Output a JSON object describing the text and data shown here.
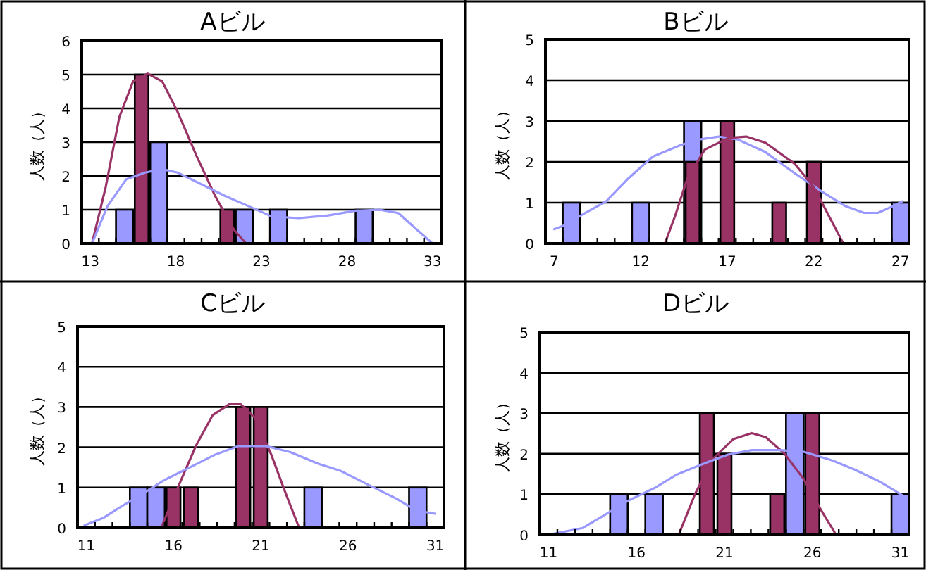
{
  "chart_data": [
    {
      "type": "bar",
      "title": "Aビル",
      "ylabel": "人数（人）",
      "x": [
        13,
        14,
        15,
        16,
        17,
        18,
        19,
        20,
        21,
        22,
        23,
        24,
        25,
        26,
        27,
        28,
        29,
        30,
        31,
        32,
        33
      ],
      "xlim": [
        12.5,
        33.5
      ],
      "xticks": [
        13,
        18,
        23,
        28,
        33
      ],
      "ylim": [
        0,
        6
      ],
      "yticks": [
        0,
        1,
        2,
        3,
        4,
        5,
        6
      ],
      "grid": "y",
      "series": [
        {
          "color": "#9999ff",
          "values": [
            0,
            0,
            1,
            0,
            3,
            0,
            0,
            0,
            0,
            1,
            0,
            1,
            0,
            0,
            0,
            0,
            1,
            0,
            0,
            0,
            0
          ]
        },
        {
          "color": "#993366",
          "values": [
            0,
            0,
            0,
            5,
            0,
            0,
            0,
            0,
            1,
            0,
            0,
            0,
            0,
            0,
            0,
            0,
            0,
            0,
            0,
            0,
            0
          ]
        },
        {
          "type": "line",
          "color": "#993366",
          "x": [
            13.1,
            13.9,
            14.7,
            15.5,
            16.35,
            17.2,
            18.1,
            19.2,
            20.3,
            21.4,
            22.1
          ],
          "values": [
            0,
            1.67,
            3.75,
            4.8,
            5.03,
            4.8,
            3.9,
            2.6,
            1.4,
            0.4,
            0
          ]
        },
        {
          "type": "line",
          "color": "#9999ff",
          "x": [
            13.1,
            14.0,
            15.1,
            16.2,
            17.2,
            18.1,
            19.5,
            20.9,
            22.5,
            23.6,
            25.2,
            26.9,
            28.5,
            29.9,
            31.0,
            32.1,
            33.0
          ],
          "values": [
            0,
            1.1,
            1.9,
            2.1,
            2.2,
            2.1,
            1.75,
            1.4,
            1.05,
            0.8,
            0.75,
            0.83,
            0.97,
            1.0,
            0.9,
            0.4,
            0
          ]
        }
      ]
    },
    {
      "type": "bar",
      "title": "Bビル",
      "ylabel": "人数（人）",
      "x": [
        7,
        8,
        9,
        10,
        11,
        12,
        13,
        14,
        15,
        16,
        17,
        18,
        19,
        20,
        21,
        22,
        23,
        24,
        25,
        26,
        27
      ],
      "xlim": [
        6.5,
        27.5
      ],
      "xticks": [
        7,
        12,
        17,
        22,
        27
      ],
      "ylim": [
        0,
        5
      ],
      "yticks": [
        0,
        1,
        2,
        3,
        4,
        5
      ],
      "grid": "y",
      "series": [
        {
          "color": "#9999ff",
          "values": [
            0,
            1,
            0,
            0,
            0,
            1,
            0,
            0,
            3,
            0,
            0,
            0,
            0,
            0,
            0,
            0,
            0,
            0,
            0,
            0,
            1
          ]
        },
        {
          "color": "#993366",
          "values": [
            0,
            0,
            0,
            0,
            0,
            0,
            0,
            0,
            2,
            0,
            3,
            0,
            0,
            1,
            0,
            2,
            0,
            0,
            0,
            0,
            0
          ]
        },
        {
          "type": "line",
          "color": "#9999ff",
          "x": [
            7.0,
            7.7,
            8.6,
            10.0,
            11.3,
            12.7,
            14.3,
            15.4,
            16.5,
            17.6,
            19.2,
            20.9,
            22.5,
            23.8,
            24.9,
            25.7,
            26.6,
            27.1
          ],
          "values": [
            0.35,
            0.46,
            0.7,
            1.03,
            1.6,
            2.13,
            2.41,
            2.55,
            2.62,
            2.55,
            2.24,
            1.72,
            1.26,
            0.92,
            0.75,
            0.75,
            0.92,
            1.03
          ]
        },
        {
          "type": "line",
          "color": "#993366",
          "x": [
            13.4,
            14.0,
            14.7,
            15.7,
            17.1,
            18.1,
            19.2,
            20.9,
            22.0,
            23.0,
            23.7
          ],
          "values": [
            0,
            0.69,
            1.6,
            2.3,
            2.59,
            2.62,
            2.47,
            1.95,
            1.38,
            0.57,
            0
          ]
        }
      ]
    },
    {
      "type": "bar",
      "title": "Cビル",
      "ylabel": "人数（人）",
      "x": [
        11,
        12,
        13,
        14,
        15,
        16,
        17,
        18,
        19,
        20,
        21,
        22,
        23,
        24,
        25,
        26,
        27,
        28,
        29,
        30,
        31
      ],
      "xlim": [
        10.5,
        31.5
      ],
      "xticks": [
        11,
        16,
        21,
        26,
        31
      ],
      "ylim": [
        0,
        5
      ],
      "yticks": [
        0,
        1,
        2,
        3,
        4,
        5
      ],
      "grid": "y",
      "series": [
        {
          "color": "#9999ff",
          "values": [
            0,
            0,
            0,
            1,
            1,
            0,
            0,
            0,
            0,
            0,
            0,
            0,
            0,
            1,
            0,
            0,
            0,
            0,
            0,
            1,
            0
          ]
        },
        {
          "color": "#993366",
          "values": [
            0,
            0,
            0,
            0,
            0,
            1,
            1,
            0,
            0,
            3,
            3,
            0,
            0,
            0,
            0,
            0,
            0,
            0,
            0,
            0,
            0
          ]
        },
        {
          "type": "line",
          "color": "#993366",
          "x": [
            15.3,
            16.25,
            17.3,
            18.25,
            19.2,
            19.85,
            20.65,
            21.6,
            22.4,
            23.2
          ],
          "values": [
            0,
            1.0,
            2.05,
            2.8,
            3.07,
            3.07,
            2.74,
            1.82,
            0.89,
            0
          ]
        },
        {
          "type": "line",
          "color": "#9999ff",
          "x": [
            10.9,
            12.0,
            13.05,
            14.4,
            15.45,
            16.8,
            18.4,
            19.7,
            21.3,
            22.7,
            24.3,
            25.6,
            27.2,
            28.8,
            29.9,
            31.0
          ],
          "values": [
            0.06,
            0.25,
            0.54,
            0.89,
            1.18,
            1.47,
            1.82,
            2.03,
            2.03,
            1.88,
            1.59,
            1.41,
            1.06,
            0.72,
            0.43,
            0.35
          ]
        }
      ]
    },
    {
      "type": "bar",
      "title": "Dビル",
      "ylabel": "人数（人）",
      "x": [
        11,
        12,
        13,
        14,
        15,
        16,
        17,
        18,
        19,
        20,
        21,
        22,
        23,
        24,
        25,
        26,
        27,
        28,
        29,
        30,
        31
      ],
      "xlim": [
        10.5,
        31.5
      ],
      "xticks": [
        11,
        16,
        21,
        26,
        31
      ],
      "ylim": [
        0,
        5
      ],
      "yticks": [
        0,
        1,
        2,
        3,
        4,
        5
      ],
      "grid": "y",
      "series": [
        {
          "color": "#9999ff",
          "values": [
            0,
            0,
            0,
            0,
            1,
            0,
            1,
            0,
            0,
            0,
            0,
            0,
            0,
            0,
            3,
            0,
            0,
            0,
            0,
            0,
            1
          ]
        },
        {
          "color": "#993366",
          "values": [
            0,
            0,
            0,
            0,
            0,
            0,
            0,
            0,
            0,
            3,
            2,
            0,
            0,
            1,
            0,
            3,
            0,
            0,
            0,
            0,
            0
          ]
        },
        {
          "type": "line",
          "color": "#993366",
          "x": [
            18.4,
            19.35,
            20.4,
            21.5,
            22.55,
            23.35,
            24.4,
            25.5,
            26.55,
            27.35
          ],
          "values": [
            0,
            1.03,
            1.9,
            2.36,
            2.51,
            2.41,
            2.01,
            1.38,
            0.57,
            0
          ]
        },
        {
          "type": "line",
          "color": "#9999ff",
          "x": [
            11.2,
            12.95,
            14.3,
            15.6,
            17.0,
            18.3,
            19.6,
            21.2,
            22.55,
            24.15,
            25.5,
            27.1,
            28.4,
            29.8,
            31.1
          ],
          "values": [
            0.02,
            0.17,
            0.52,
            0.86,
            1.15,
            1.49,
            1.72,
            1.98,
            2.09,
            2.09,
            2.05,
            1.84,
            1.61,
            1.32,
            0.98
          ]
        }
      ]
    }
  ]
}
